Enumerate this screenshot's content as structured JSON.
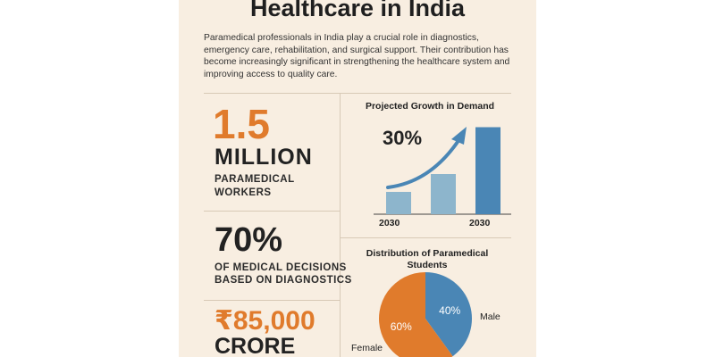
{
  "header": {
    "title": "Healthcare in India",
    "intro": "Paramedical professionals in India play a crucial role in diagnostics, emergency care, rehabilitation, and surgical support. Their contribution has become increasingly significant in strengthening the healthcare system and improving access to quality care."
  },
  "stats": {
    "workers": {
      "value": "1.5",
      "unit": "MILLION",
      "line1": "PARAMEDICAL",
      "line2": "WORKERS"
    },
    "decisions": {
      "value": "70%",
      "line1": "OF MEDICAL DECISIONS",
      "line2": "BASED ON DIAGNOSTICS"
    },
    "market": {
      "value": "₹85,000",
      "unit": "CRORE"
    }
  },
  "colors": {
    "orange": "#e07b2c",
    "blue": "#4a86b5",
    "light_blue": "#8db5cc"
  },
  "chart_data": [
    {
      "type": "bar",
      "title": "Projected Growth in Demand",
      "annotation": "30%",
      "categories": [
        "",
        "",
        ""
      ],
      "values": [
        1.0,
        1.8,
        3.9
      ],
      "x_tick_labels": [
        "2030",
        "2030"
      ],
      "bar_colors": [
        "#8db5cc",
        "#8db5cc",
        "#4a86b5"
      ],
      "has_trend_arrow": true,
      "ylim": [
        0,
        4
      ]
    },
    {
      "type": "pie",
      "title_line1": "Distribution of Paramedical",
      "title_line2": "Students",
      "slices": [
        {
          "name": "Male",
          "value": 40,
          "label": "40%",
          "color": "#4a86b5"
        },
        {
          "name": "Female",
          "value": 60,
          "label": "60%",
          "color": "#e07b2c"
        }
      ]
    }
  ]
}
